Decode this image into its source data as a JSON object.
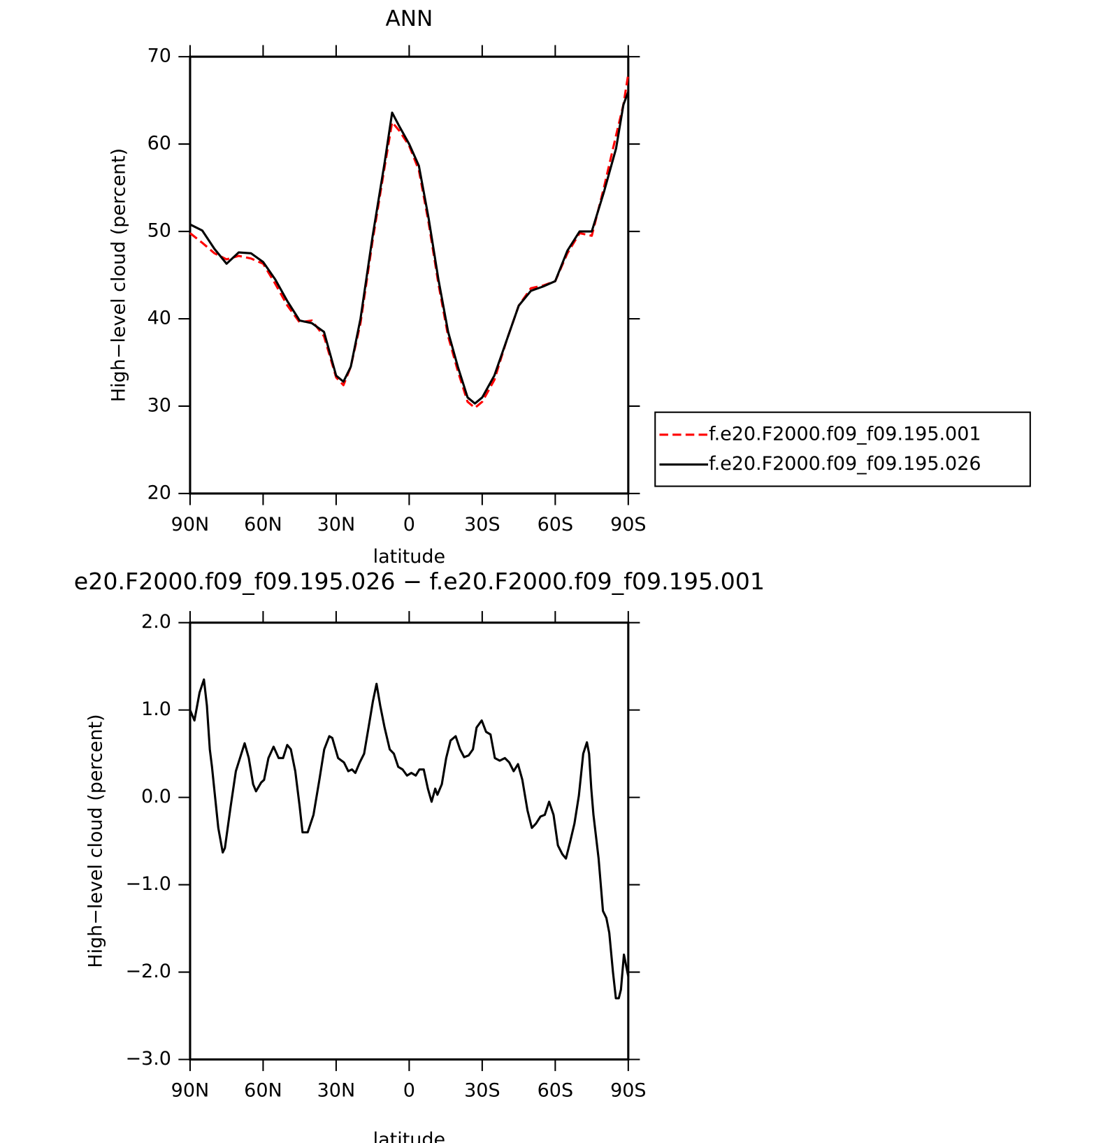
{
  "chart_data": [
    {
      "type": "line",
      "title": "ANN",
      "xlabel": "latitude",
      "ylabel": "High−level cloud (percent)",
      "x": [
        90,
        85,
        80,
        75,
        70,
        65,
        60,
        55,
        50,
        45,
        40,
        35,
        30,
        27,
        24,
        20,
        15,
        10,
        7,
        4,
        0,
        -4,
        -8,
        -12,
        -16,
        -20,
        -24,
        -27,
        -30,
        -35,
        -40,
        -45,
        -50,
        -55,
        -60,
        -65,
        -70,
        -75,
        -80,
        -85,
        -88,
        -90
      ],
      "series": [
        {
          "name": "f.e20.F2000.f09_f09.195.001",
          "color": "#ff0000",
          "dash": "dashed",
          "values": [
            49.8,
            48.7,
            47.5,
            46.8,
            47.2,
            46.9,
            46.3,
            44,
            41.5,
            39.6,
            39.8,
            38,
            33.3,
            32.4,
            34.5,
            39.5,
            49,
            57.5,
            62.5,
            61.5,
            59.8,
            57,
            51,
            44,
            38,
            34,
            30.5,
            29.8,
            30.5,
            33,
            37.5,
            41.5,
            43.5,
            43.8,
            44.3,
            47.5,
            49.8,
            49.5,
            55,
            61,
            64.5,
            68
          ]
        },
        {
          "name": "f.e20.F2000.f09_f09.195.026",
          "color": "#000000",
          "dash": "solid",
          "values": [
            50.8,
            50.1,
            48,
            46.3,
            47.6,
            47.5,
            46.5,
            44.5,
            42,
            39.8,
            39.5,
            38.5,
            33.5,
            32.8,
            34.5,
            40,
            49.5,
            58,
            63.6,
            62,
            60,
            57.5,
            51.5,
            44.5,
            38.5,
            34.5,
            31,
            30.3,
            31,
            33.5,
            37.5,
            41.5,
            43.2,
            43.7,
            44.3,
            47.8,
            50,
            50,
            54.5,
            59.5,
            64.5,
            66
          ]
        }
      ],
      "xlim": [
        90,
        -90
      ],
      "xticks": [
        {
          "value": 90,
          "label": "90N"
        },
        {
          "value": 60,
          "label": "60N"
        },
        {
          "value": 30,
          "label": "30N"
        },
        0,
        {
          "value": -30,
          "label": "30S"
        },
        {
          "value": -60,
          "label": "60S"
        },
        {
          "value": -90,
          "label": "90S"
        }
      ],
      "ylim": [
        20,
        70
      ],
      "yticks": [
        20,
        30,
        40,
        50,
        60,
        70
      ],
      "legend": "right"
    },
    {
      "type": "line",
      "title": "e20.F2000.f09_f09.195.026 − f.e20.F2000.f09_f09.195.001",
      "xlabel": "latitude",
      "ylabel": "High−level cloud (percent)",
      "x": [
        90,
        88.2,
        86.1,
        84.3,
        83.1,
        81.9,
        81.0,
        79.9,
        78.4,
        76.6,
        75.7,
        73.3,
        71.2,
        67.6,
        65.9,
        64.1,
        62.9,
        60.8,
        59.6,
        57.8,
        55.7,
        53.6,
        51.8,
        50.1,
        48.6,
        46.8,
        45.0,
        43.8,
        41.7,
        39.3,
        36.9,
        34.9,
        32.8,
        31.6,
        29.2,
        26.8,
        25.0,
        23.5,
        22.1,
        20.3,
        18.5,
        16.7,
        14.9,
        13.4,
        11.9,
        10.1,
        8.0,
        6.3,
        4.5,
        2.7,
        0.9,
        -0.9,
        -2.7,
        -4.2,
        -6.0,
        -7.7,
        -9.2,
        -10.7,
        -11.6,
        -13.4,
        -15.2,
        -17.0,
        -19.1,
        -20.9,
        -22.6,
        -24.4,
        -26.2,
        -27.7,
        -29.8,
        -31.6,
        -33.4,
        -35.2,
        -37.2,
        -39.3,
        -41.1,
        -42.9,
        -44.7,
        -46.5,
        -48.6,
        -50.4,
        -52.1,
        -53.9,
        -55.7,
        -57.5,
        -59.3,
        -61.1,
        -62.9,
        -64.4,
        -66.2,
        -67.9,
        -69.7,
        -71.5,
        -73.0,
        -73.9,
        -74.8,
        -75.7,
        -77.8,
        -79.6,
        -81.0,
        -82.2,
        -83.7,
        -84.9,
        -86.1,
        -87.0,
        -88.2,
        -90
      ],
      "values": [
        1.0,
        0.88,
        1.2,
        1.35,
        1.05,
        0.55,
        0.35,
        0.05,
        -0.35,
        -0.63,
        -0.58,
        -0.1,
        0.3,
        0.62,
        0.45,
        0.15,
        0.07,
        0.17,
        0.2,
        0.45,
        0.58,
        0.45,
        0.45,
        0.6,
        0.55,
        0.3,
        -0.1,
        -0.4,
        -0.4,
        -0.2,
        0.2,
        0.55,
        0.7,
        0.68,
        0.45,
        0.4,
        0.3,
        0.32,
        0.28,
        0.4,
        0.5,
        0.8,
        1.1,
        1.3,
        1.05,
        0.8,
        0.55,
        0.5,
        0.35,
        0.32,
        0.25,
        0.28,
        0.25,
        0.32,
        0.32,
        0.1,
        -0.05,
        0.1,
        0.03,
        0.15,
        0.45,
        0.65,
        0.7,
        0.55,
        0.46,
        0.48,
        0.55,
        0.8,
        0.88,
        0.75,
        0.72,
        0.45,
        0.42,
        0.45,
        0.4,
        0.3,
        0.38,
        0.2,
        -0.15,
        -0.35,
        -0.3,
        -0.22,
        -0.2,
        -0.05,
        -0.2,
        -0.55,
        -0.65,
        -0.7,
        -0.5,
        -0.3,
        0.02,
        0.5,
        0.63,
        0.5,
        0.1,
        -0.2,
        -0.7,
        -1.3,
        -1.38,
        -1.55,
        -2.0,
        -2.3,
        -2.3,
        -2.2,
        -1.8,
        -2.05
      ],
      "color": "#000000",
      "xlim": [
        90,
        -90
      ],
      "xticks": [
        {
          "value": 90,
          "label": "90N"
        },
        {
          "value": 60,
          "label": "60N"
        },
        {
          "value": 30,
          "label": "30N"
        },
        0,
        {
          "value": -30,
          "label": "30S"
        },
        {
          "value": -60,
          "label": "60S"
        },
        {
          "value": -90,
          "label": "90S"
        }
      ],
      "ylim": [
        -3,
        2
      ],
      "yticks": [
        {
          "value": -3,
          "label": "−3.0"
        },
        {
          "value": -2,
          "label": "−2.0"
        },
        {
          "value": -1,
          "label": "−1.0"
        },
        {
          "value": 0,
          "label": "0.0"
        },
        {
          "value": 1,
          "label": "1.0"
        },
        {
          "value": 2,
          "label": "2.0"
        }
      ]
    }
  ]
}
